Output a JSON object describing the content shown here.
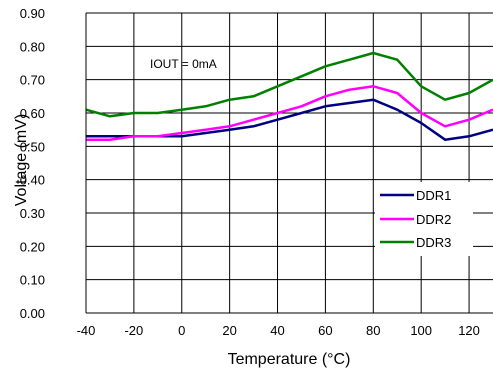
{
  "chart_data": {
    "type": "line",
    "xlabel": "Temperature (°C)",
    "ylabel": "Voltage (mV)",
    "annotation": "IOUT = 0mA",
    "xlim": [
      -40,
      130
    ],
    "ylim": [
      0,
      0.9
    ],
    "x_ticks": [
      -40,
      -20,
      0,
      20,
      40,
      60,
      80,
      100,
      120
    ],
    "x_tick_labels": [
      "-40",
      "-20",
      "0",
      "20",
      "40",
      "60",
      "80",
      "100",
      "120"
    ],
    "y_ticks": [
      0,
      0.1,
      0.2,
      0.3,
      0.4,
      0.5,
      0.6,
      0.7,
      0.8,
      0.9
    ],
    "y_tick_labels": [
      "0.00",
      "0.10",
      "0.20",
      "0.30",
      "0.40",
      "0.50",
      "0.60",
      "0.70",
      "0.80",
      "0.90"
    ],
    "grid": true,
    "legend_position": "bottom-right",
    "x": [
      -40,
      -30,
      -20,
      -10,
      0,
      10,
      20,
      30,
      40,
      50,
      60,
      70,
      80,
      90,
      100,
      110,
      120,
      130
    ],
    "series": [
      {
        "name": "DDR1",
        "color": "#000080",
        "values": [
          0.53,
          0.53,
          0.53,
          0.53,
          0.53,
          0.54,
          0.55,
          0.56,
          0.58,
          0.6,
          0.62,
          0.63,
          0.64,
          0.61,
          0.57,
          0.52,
          0.53,
          0.55
        ]
      },
      {
        "name": "DDR2",
        "color": "#FF00FF",
        "values": [
          0.52,
          0.52,
          0.53,
          0.53,
          0.54,
          0.55,
          0.56,
          0.58,
          0.6,
          0.62,
          0.65,
          0.67,
          0.68,
          0.66,
          0.6,
          0.56,
          0.58,
          0.61
        ]
      },
      {
        "name": "DDR3",
        "color": "#008000",
        "values": [
          0.61,
          0.59,
          0.6,
          0.6,
          0.61,
          0.62,
          0.64,
          0.65,
          0.68,
          0.71,
          0.74,
          0.76,
          0.78,
          0.76,
          0.68,
          0.64,
          0.66,
          0.7
        ]
      }
    ]
  }
}
